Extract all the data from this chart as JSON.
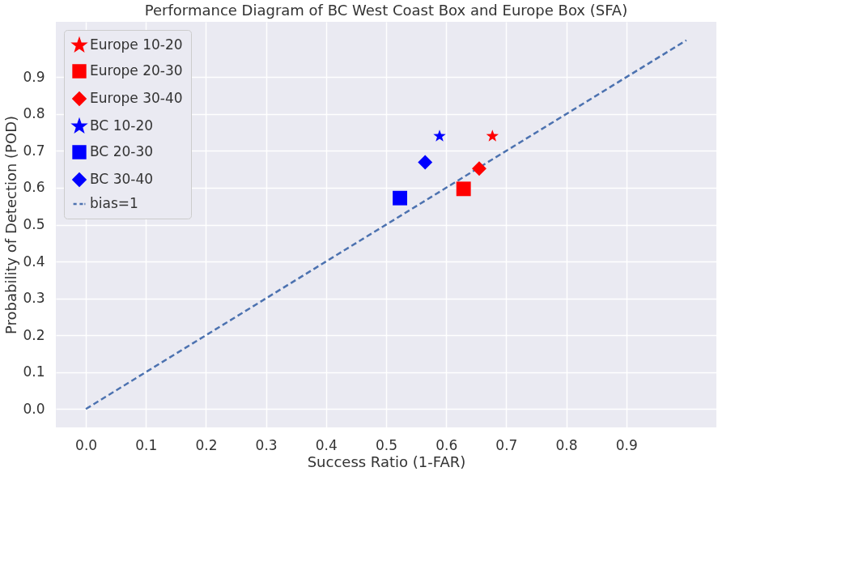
{
  "chart_data": {
    "type": "scatter",
    "title": "Performance Diagram of BC West Coast Box and Europe Box (SFA)",
    "xlabel": "Success Ratio (1-FAR)",
    "ylabel": "Probability of Detection (POD)",
    "series": [
      {
        "name": "Europe 10-20",
        "color": "#ff0000",
        "marker": "star",
        "x": [
          0.677
        ],
        "values": [
          0.74
        ]
      },
      {
        "name": "Europe 20-30",
        "color": "#ff0000",
        "marker": "square",
        "x": [
          0.629
        ],
        "values": [
          0.597
        ]
      },
      {
        "name": "Europe 30-40",
        "color": "#ff0000",
        "marker": "diamond",
        "x": [
          0.655
        ],
        "values": [
          0.652
        ]
      },
      {
        "name": "BC 10-20",
        "color": "#0000ff",
        "marker": "star",
        "x": [
          0.589
        ],
        "values": [
          0.74
        ]
      },
      {
        "name": "BC 20-30",
        "color": "#0000ff",
        "marker": "square",
        "x": [
          0.523
        ],
        "values": [
          0.572
        ]
      },
      {
        "name": "BC 30-40",
        "color": "#0000ff",
        "marker": "diamond",
        "x": [
          0.565
        ],
        "values": [
          0.669
        ]
      },
      {
        "name": "bias=1",
        "type": "line",
        "color": "#4c72b0",
        "line_style": "dashed",
        "marker": "none",
        "x": [
          0,
          1
        ],
        "values": [
          0,
          1
        ]
      }
    ],
    "xlim": [
      -0.05,
      1.05
    ],
    "ylim": [
      -0.05,
      1.05
    ],
    "xticks": [
      {
        "value": 0,
        "label": "0.0"
      },
      0.1,
      0.2,
      0.3,
      0.4,
      0.5,
      0.6,
      0.7,
      0.8,
      0.9
    ],
    "yticks": [
      {
        "value": 0,
        "label": "0.0"
      },
      0.1,
      0.2,
      0.3,
      0.4,
      0.5,
      0.6,
      0.7,
      0.8,
      0.9
    ],
    "grid": true,
    "legend": "top left"
  }
}
